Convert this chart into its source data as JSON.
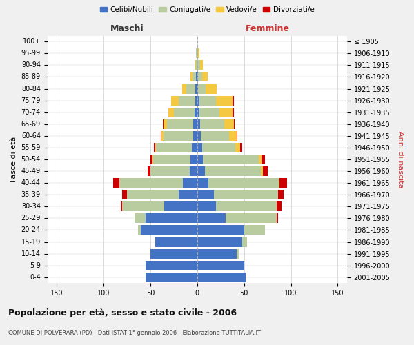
{
  "age_groups": [
    "0-4",
    "5-9",
    "10-14",
    "15-19",
    "20-24",
    "25-29",
    "30-34",
    "35-39",
    "40-44",
    "45-49",
    "50-54",
    "55-59",
    "60-64",
    "65-69",
    "70-74",
    "75-79",
    "80-84",
    "85-89",
    "90-94",
    "95-99",
    "100+"
  ],
  "birth_years": [
    "2001-2005",
    "1996-2000",
    "1991-1995",
    "1986-1990",
    "1981-1985",
    "1976-1980",
    "1971-1975",
    "1966-1970",
    "1961-1965",
    "1956-1960",
    "1951-1955",
    "1946-1950",
    "1941-1945",
    "1936-1940",
    "1931-1935",
    "1926-1930",
    "1921-1925",
    "1916-1920",
    "1911-1915",
    "1906-1910",
    "≤ 1905"
  ],
  "male": {
    "celibe": [
      55,
      55,
      50,
      45,
      60,
      55,
      35,
      20,
      15,
      8,
      7,
      6,
      4,
      4,
      3,
      2,
      2,
      1,
      0,
      0,
      0
    ],
    "coniugato": [
      0,
      0,
      0,
      0,
      3,
      12,
      45,
      55,
      68,
      42,
      40,
      38,
      32,
      28,
      22,
      18,
      10,
      4,
      2,
      1,
      0
    ],
    "vedovo": [
      0,
      0,
      0,
      0,
      0,
      0,
      0,
      0,
      0,
      0,
      1,
      1,
      2,
      4,
      6,
      8,
      4,
      2,
      1,
      0,
      0
    ],
    "divorziato": [
      0,
      0,
      0,
      0,
      0,
      0,
      2,
      5,
      7,
      3,
      2,
      1,
      1,
      1,
      0,
      0,
      0,
      0,
      0,
      0,
      0
    ]
  },
  "female": {
    "nubile": [
      52,
      50,
      42,
      48,
      50,
      30,
      20,
      18,
      12,
      8,
      6,
      5,
      4,
      3,
      2,
      2,
      1,
      1,
      0,
      0,
      0
    ],
    "coniugata": [
      0,
      0,
      2,
      5,
      22,
      55,
      65,
      68,
      75,
      60,
      60,
      36,
      30,
      26,
      22,
      18,
      8,
      4,
      3,
      1,
      0
    ],
    "vedova": [
      0,
      0,
      0,
      0,
      0,
      0,
      0,
      0,
      1,
      2,
      3,
      5,
      8,
      10,
      14,
      18,
      12,
      6,
      3,
      1,
      0
    ],
    "divorziata": [
      0,
      0,
      0,
      0,
      0,
      1,
      5,
      6,
      8,
      5,
      3,
      2,
      1,
      1,
      1,
      1,
      0,
      0,
      0,
      0,
      0
    ]
  },
  "colors": {
    "celibe": "#4472c4",
    "coniugato": "#b8cca0",
    "vedovo": "#f5c842",
    "divorziato": "#cc0000"
  },
  "xlim": 160,
  "title": "Popolazione per età, sesso e stato civile - 2006",
  "subtitle": "COMUNE DI POLVERARA (PD) - Dati ISTAT 1° gennaio 2006 - Elaborazione TUTTITALIA.IT",
  "xlabel_left": "Maschi",
  "xlabel_right": "Femmine",
  "ylabel": "Fasce di età",
  "ylabel_right": "Anni di nascita",
  "bg_color": "#f0f0f0",
  "plot_bg_color": "#ffffff",
  "grid_color": "#cccccc"
}
